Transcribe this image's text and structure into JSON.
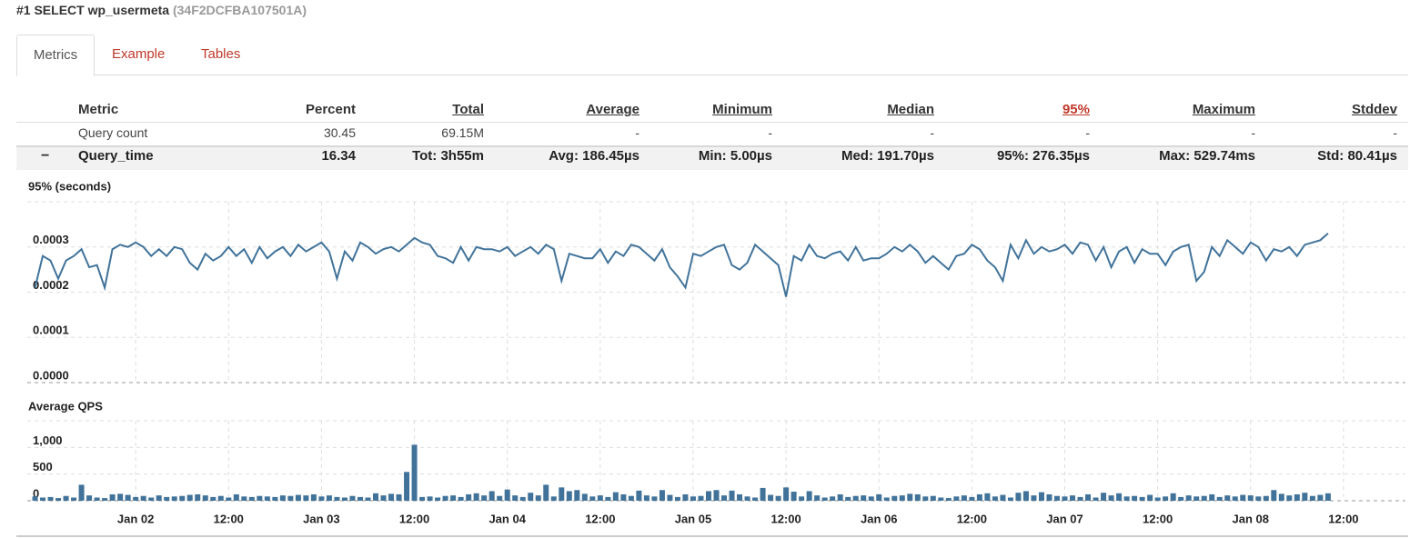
{
  "header": {
    "title": "#1 SELECT wp_usermeta",
    "id": "(34F2DCFBA107501A)"
  },
  "tabs": [
    "Metrics",
    "Example",
    "Tables"
  ],
  "table": {
    "columns": [
      "Metric",
      "Percent",
      "Total",
      "Average",
      "Minimum",
      "Median",
      "95%",
      "Maximum",
      "Stddev"
    ],
    "rows": [
      [
        "Query count",
        "30.45",
        "69.15M",
        "-",
        "-",
        "-",
        "-",
        "-",
        "-"
      ],
      [
        "Query_time",
        "16.34",
        "Tot: 3h55m",
        "Avg: 186.45µs",
        "Min: 5.00µs",
        "Med: 191.70µs",
        "95%: 276.35µs",
        "Max: 529.74ms",
        "Std: 80.41µs"
      ]
    ],
    "toggle": "−"
  },
  "chart_data": [
    {
      "type": "line",
      "title": "95% (seconds)",
      "color": "#41739a",
      "grid": true,
      "xlim": [
        10,
        188
      ],
      "ylim": [
        0,
        0.0004
      ],
      "yticks": [
        {
          "value": 0,
          "label": "0.0000"
        },
        {
          "value": 0.0001,
          "label": "0.0001"
        },
        {
          "value": 0.0002,
          "label": "0.0002"
        },
        {
          "value": 0.0003,
          "label": "0.0003"
        }
      ],
      "x": [
        11,
        12,
        13,
        14,
        15,
        16,
        17,
        18,
        19,
        20,
        21,
        22,
        23,
        24,
        25,
        26,
        27,
        28,
        29,
        30,
        31,
        32,
        33,
        34,
        35,
        36,
        37,
        38,
        39,
        40,
        41,
        42,
        43,
        44,
        45,
        46,
        47,
        48,
        49,
        50,
        51,
        52,
        53,
        54,
        55,
        56,
        57,
        58,
        59,
        60,
        61,
        62,
        63,
        64,
        65,
        66,
        67,
        68,
        69,
        70,
        71,
        72,
        73,
        74,
        75,
        76,
        77,
        78,
        79,
        80,
        81,
        82,
        83,
        84,
        85,
        86,
        87,
        88,
        89,
        90,
        91,
        92,
        93,
        94,
        95,
        96,
        97,
        98,
        99,
        100,
        101,
        102,
        103,
        104,
        105,
        106,
        107,
        108,
        109,
        110,
        111,
        112,
        113,
        114,
        115,
        116,
        117,
        118,
        119,
        120,
        121,
        122,
        123,
        124,
        125,
        126,
        127,
        128,
        129,
        130,
        131,
        132,
        133,
        134,
        135,
        136,
        137,
        138,
        139,
        140,
        141,
        142,
        143,
        144,
        145,
        146,
        147,
        148,
        149,
        150,
        151,
        152,
        153,
        154,
        155,
        156,
        157,
        158,
        159,
        160,
        161,
        162,
        163,
        164,
        165,
        166,
        167,
        168,
        169,
        170,
        171,
        172,
        173,
        174,
        175,
        176,
        177,
        178
      ],
      "values": [
        0.00021,
        0.00028,
        0.00027,
        0.00023,
        0.00027,
        0.00028,
        0.000295,
        0.000255,
        0.00026,
        0.00021,
        0.000295,
        0.000305,
        0.0003,
        0.00031,
        0.0003,
        0.00028,
        0.000295,
        0.00028,
        0.0003,
        0.000295,
        0.000265,
        0.00025,
        0.000285,
        0.00027,
        0.00028,
        0.0003,
        0.00028,
        0.000295,
        0.000265,
        0.0003,
        0.000275,
        0.00029,
        0.0003,
        0.00028,
        0.000305,
        0.00029,
        0.0003,
        0.00031,
        0.00029,
        0.00023,
        0.00029,
        0.00027,
        0.00031,
        0.0003,
        0.000285,
        0.000295,
        0.0003,
        0.00029,
        0.000305,
        0.00032,
        0.00031,
        0.000305,
        0.00028,
        0.000275,
        0.000265,
        0.0003,
        0.00027,
        0.0003,
        0.000295,
        0.000295,
        0.00029,
        0.0003,
        0.00028,
        0.00029,
        0.0003,
        0.000285,
        0.000305,
        0.000295,
        0.000225,
        0.000285,
        0.00028,
        0.000275,
        0.000275,
        0.000295,
        0.000265,
        0.00029,
        0.00028,
        0.000305,
        0.0003,
        0.000285,
        0.00027,
        0.000295,
        0.000255,
        0.000235,
        0.00021,
        0.000285,
        0.00028,
        0.00029,
        0.0003,
        0.000305,
        0.00026,
        0.00025,
        0.000265,
        0.000305,
        0.00029,
        0.000275,
        0.00026,
        0.00019,
        0.00028,
        0.00027,
        0.000305,
        0.00028,
        0.000275,
        0.000285,
        0.00029,
        0.00027,
        0.0003,
        0.00027,
        0.000275,
        0.000275,
        0.000285,
        0.0003,
        0.00029,
        0.000305,
        0.00029,
        0.000265,
        0.00028,
        0.000265,
        0.00025,
        0.00028,
        0.000285,
        0.000305,
        0.000295,
        0.00027,
        0.000255,
        0.000225,
        0.000305,
        0.000275,
        0.000315,
        0.000285,
        0.0003,
        0.00029,
        0.000295,
        0.000305,
        0.000285,
        0.00031,
        0.000305,
        0.00027,
        0.0003,
        0.000255,
        0.00029,
        0.0003,
        0.000265,
        0.000295,
        0.000285,
        0.000285,
        0.00026,
        0.00029,
        0.0003,
        0.000305,
        0.000225,
        0.000245,
        0.0003,
        0.00028,
        0.000315,
        0.0003,
        0.000285,
        0.00031,
        0.0003,
        0.00027,
        0.000295,
        0.00029,
        0.0003,
        0.00028,
        0.000305,
        0.00031,
        0.000315,
        0.00033
      ]
    },
    {
      "type": "bar",
      "title": "Average QPS",
      "color": "#41739a",
      "grid": true,
      "xlim": [
        10,
        188
      ],
      "ylim": [
        0,
        1500
      ],
      "yticks": [
        0,
        500,
        {
          "value": 1000,
          "label": "1,000"
        }
      ],
      "xticks": [
        {
          "value": 24,
          "label": "Jan 02"
        },
        {
          "value": 36,
          "label": "12:00"
        },
        {
          "value": 48,
          "label": "Jan 03"
        },
        {
          "value": 60,
          "label": "12:00"
        },
        {
          "value": 72,
          "label": "Jan 04"
        },
        {
          "value": 84,
          "label": "12:00"
        },
        {
          "value": 96,
          "label": "Jan 05"
        },
        {
          "value": 108,
          "label": "12:00"
        },
        {
          "value": 120,
          "label": "Jan 06"
        },
        {
          "value": 132,
          "label": "12:00"
        },
        {
          "value": 144,
          "label": "Jan 07"
        },
        {
          "value": 156,
          "label": "12:00"
        },
        {
          "value": 168,
          "label": "Jan 08"
        },
        {
          "value": 180,
          "label": "12:00"
        }
      ],
      "x": [
        11,
        12,
        13,
        14,
        15,
        16,
        17,
        18,
        19,
        20,
        21,
        22,
        23,
        24,
        25,
        26,
        27,
        28,
        29,
        30,
        31,
        32,
        33,
        34,
        35,
        36,
        37,
        38,
        39,
        40,
        41,
        42,
        43,
        44,
        45,
        46,
        47,
        48,
        49,
        50,
        51,
        52,
        53,
        54,
        55,
        56,
        57,
        58,
        59,
        60,
        61,
        62,
        63,
        64,
        65,
        66,
        67,
        68,
        69,
        70,
        71,
        72,
        73,
        74,
        75,
        76,
        77,
        78,
        79,
        80,
        81,
        82,
        83,
        84,
        85,
        86,
        87,
        88,
        89,
        90,
        91,
        92,
        93,
        94,
        95,
        96,
        97,
        98,
        99,
        100,
        101,
        102,
        103,
        104,
        105,
        106,
        107,
        108,
        109,
        110,
        111,
        112,
        113,
        114,
        115,
        116,
        117,
        118,
        119,
        120,
        121,
        122,
        123,
        124,
        125,
        126,
        127,
        128,
        129,
        130,
        131,
        132,
        133,
        134,
        135,
        136,
        137,
        138,
        139,
        140,
        141,
        142,
        143,
        144,
        145,
        146,
        147,
        148,
        149,
        150,
        151,
        152,
        153,
        154,
        155,
        156,
        157,
        158,
        159,
        160,
        161,
        162,
        163,
        164,
        165,
        166,
        167,
        168,
        169,
        170,
        171,
        172,
        173,
        174,
        175,
        176,
        177,
        178
      ],
      "values": [
        80,
        60,
        70,
        50,
        90,
        60,
        300,
        100,
        60,
        50,
        120,
        130,
        110,
        70,
        90,
        60,
        100,
        70,
        80,
        90,
        110,
        120,
        100,
        70,
        90,
        60,
        120,
        80,
        70,
        90,
        80,
        70,
        100,
        90,
        110,
        100,
        120,
        80,
        100,
        70,
        60,
        90,
        70,
        60,
        140,
        100,
        130,
        120,
        540,
        1050,
        70,
        80,
        60,
        90,
        100,
        70,
        120,
        140,
        100,
        180,
        90,
        210,
        100,
        70,
        150,
        100,
        300,
        80,
        250,
        180,
        200,
        130,
        80,
        100,
        70,
        160,
        120,
        90,
        190,
        100,
        80,
        200,
        110,
        70,
        120,
        80,
        90,
        180,
        200,
        100,
        190,
        120,
        80,
        60,
        240,
        110,
        90,
        250,
        170,
        80,
        180,
        100,
        60,
        80,
        120,
        70,
        90,
        100,
        80,
        120,
        60,
        90,
        100,
        130,
        120,
        80,
        90,
        60,
        50,
        80,
        100,
        70,
        120,
        140,
        80,
        110,
        60,
        150,
        180,
        100,
        160,
        120,
        90,
        80,
        100,
        70,
        120,
        60,
        150,
        100,
        140,
        80,
        90,
        70,
        110,
        60,
        80,
        140,
        70,
        100,
        80,
        90,
        120,
        70,
        100,
        80,
        110,
        100,
        80,
        90,
        200,
        130,
        100,
        120,
        150,
        90,
        110,
        140
      ]
    }
  ]
}
